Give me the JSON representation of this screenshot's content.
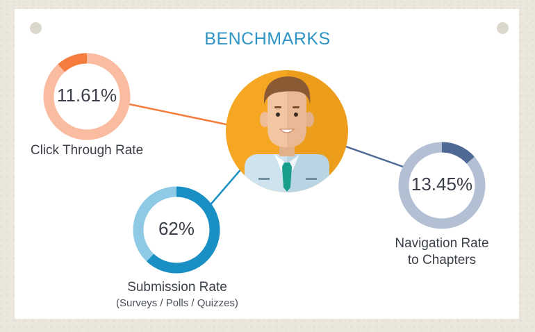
{
  "title": "BENCHMARKS",
  "colors": {
    "title": "#2f95c4",
    "click_through": "#f47c3c",
    "click_through_track": "#f9bca0",
    "submission": "#1a8fc3",
    "submission_track": "#8ecae6",
    "navigation": "#4e6a94",
    "navigation_track": "#b3bfd3",
    "avatar_bg": "#f5a623"
  },
  "icons": [
    "businessman-avatar"
  ],
  "chart_data": {
    "type": "pie",
    "title": "BENCHMARKS",
    "series": [
      {
        "name": "Click Through Rate",
        "value_label": "11.61%",
        "percent": 11.61
      },
      {
        "name": "Submission Rate",
        "subtitle": "(Surveys / Polls / Quizzes)",
        "value_label": "62%",
        "percent": 62
      },
      {
        "name": "Navigation Rate to Chapters",
        "value_label": "13.45%",
        "percent": 13.45
      }
    ]
  },
  "labels": {
    "click_through": "Click Through Rate",
    "submission": "Submission Rate",
    "submission_sub": "(Surveys / Polls / Quizzes)",
    "navigation_line1": "Navigation Rate",
    "navigation_line2": "to Chapters"
  }
}
